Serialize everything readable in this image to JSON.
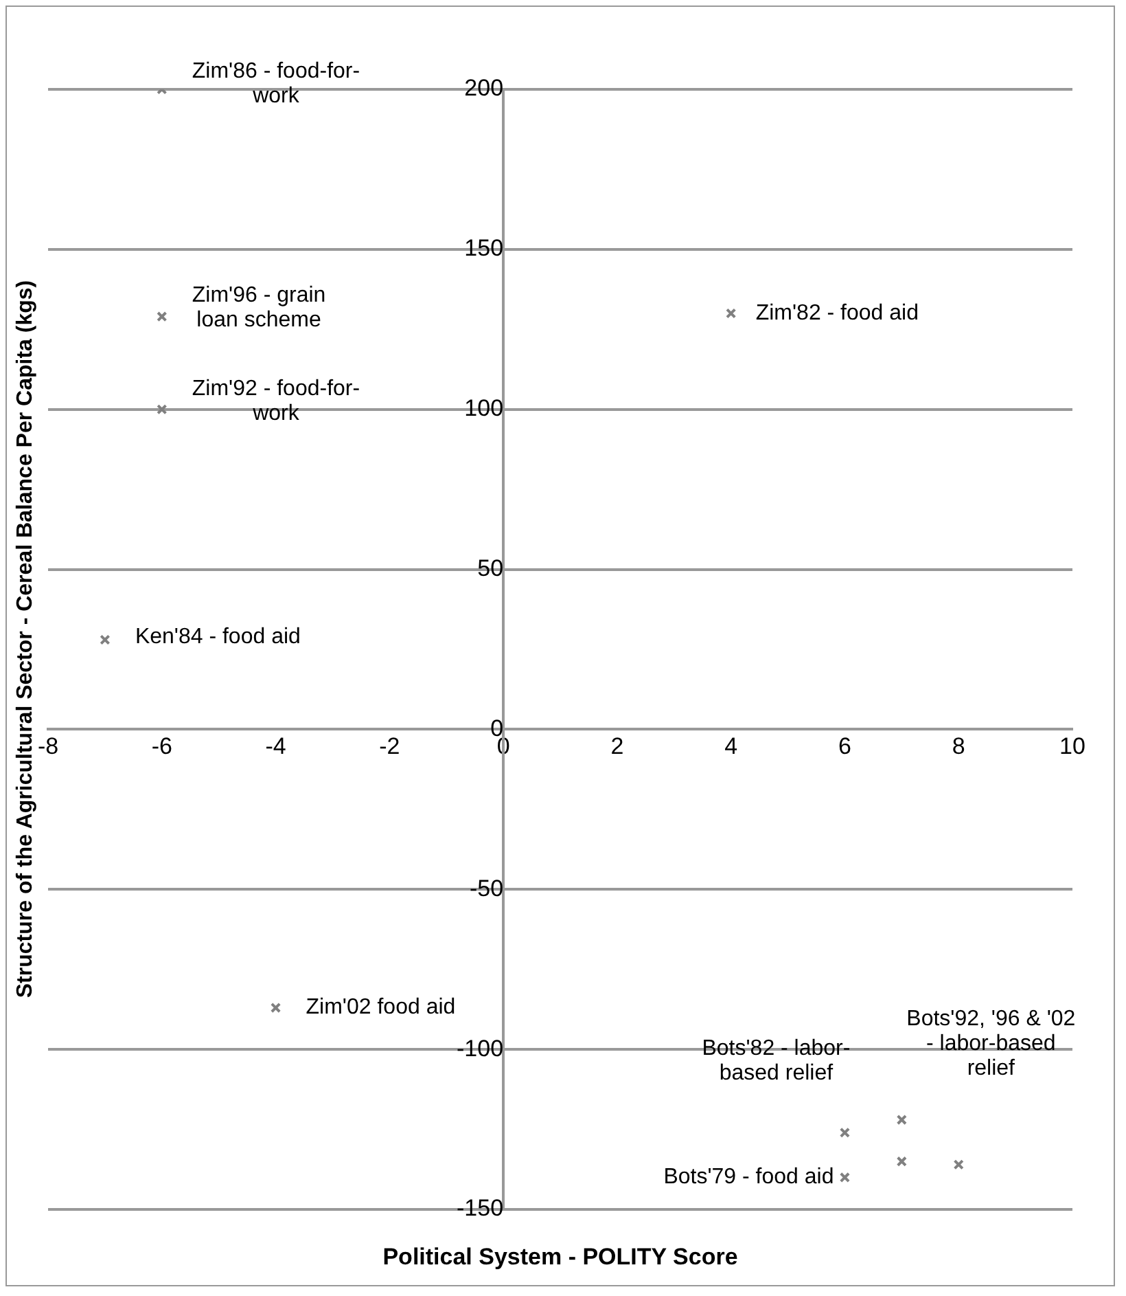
{
  "chart_data": {
    "type": "scatter",
    "xlabel": "Political System - POLITY Score",
    "ylabel": "Structure of the Agricultural Sector - Cereal Balance Per Capita (kgs)",
    "series": [
      {
        "color": "#808080",
        "x": [
          -6,
          -6,
          -6,
          -7,
          4,
          -4,
          6,
          7,
          6,
          7,
          8
        ],
        "values": [
          200,
          129,
          100,
          28,
          130,
          -87,
          -126,
          -122,
          -140,
          -135,
          -136
        ]
      }
    ],
    "xlim": [
      -8,
      10
    ],
    "xticks": [
      -8,
      -6,
      -4,
      -2,
      0,
      2,
      4,
      6,
      8,
      10
    ],
    "ylim": [
      -150,
      200
    ],
    "yticks": [
      -150,
      -100,
      -50,
      0,
      50,
      100,
      150,
      200
    ],
    "grid": "y",
    "marker": "cross",
    "annotations": [
      {
        "text": "Zim'86 - food-for-\nwork",
        "x": -6,
        "y": 200
      },
      {
        "text": "Zim'96 - grain\nloan scheme",
        "x": -6,
        "y": 129
      },
      {
        "text": "Zim'92 - food-for-\nwork",
        "x": -6,
        "y": 100
      },
      {
        "text": "Ken'84 - food aid",
        "x": -7,
        "y": 28
      },
      {
        "text": "Zim'82 - food aid",
        "x": 4,
        "y": 130
      },
      {
        "text": "Zim'02 food aid",
        "x": -4,
        "y": -87
      },
      {
        "text": "Bots'82 - labor-\nbased relief",
        "x": 6,
        "y": -126
      },
      {
        "text": "Bots'92, '96 & '02\n- labor-based\nrelief",
        "x": 7,
        "y": -122
      },
      {
        "text": "Bots'79 - food aid",
        "x": 6,
        "y": -140
      }
    ]
  }
}
